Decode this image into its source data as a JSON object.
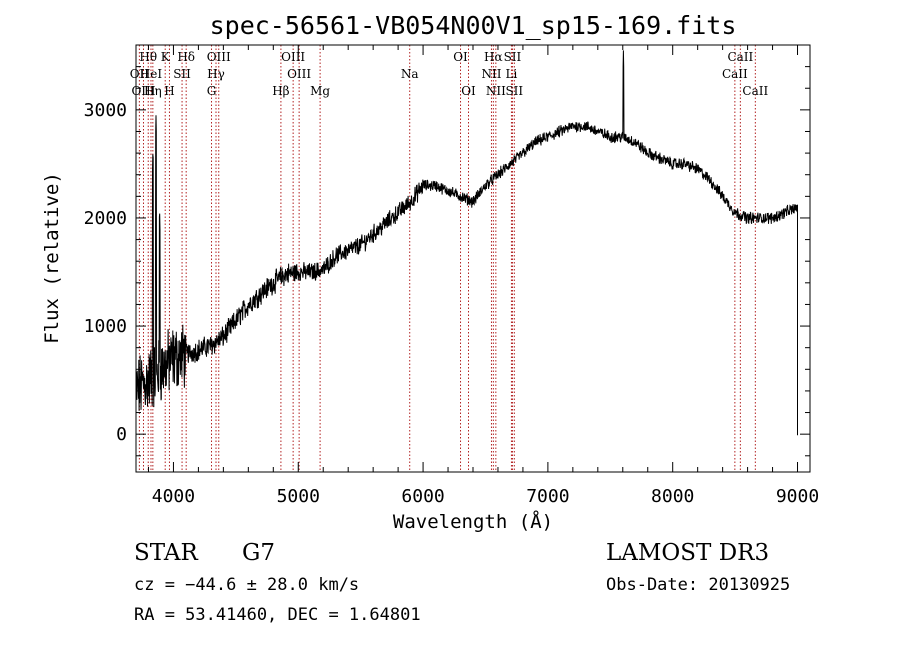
{
  "chart_data": {
    "type": "line",
    "title": "spec-56561-VB054N00V1_sp15-169.fits",
    "xlabel": "Wavelength (Å)",
    "ylabel": "Flux (relative)",
    "xlim": [
      3700,
      9100
    ],
    "ylim": [
      -350,
      3600
    ],
    "xticks": [
      4000,
      5000,
      6000,
      7000,
      8000,
      9000
    ],
    "yticks": [
      0,
      1000,
      2000,
      3000
    ],
    "continuum": {
      "x": [
        3700,
        3800,
        3900,
        4000,
        4100,
        4200,
        4300,
        4400,
        4500,
        4600,
        4700,
        4800,
        4900,
        5000,
        5100,
        5200,
        5300,
        5400,
        5500,
        5600,
        5700,
        5800,
        5900,
        6000,
        6100,
        6200,
        6300,
        6400,
        6500,
        6600,
        6700,
        6800,
        6900,
        7000,
        7100,
        7200,
        7300,
        7400,
        7500,
        7600,
        7700,
        7800,
        7900,
        8000,
        8100,
        8200,
        8300,
        8400,
        8500,
        8600,
        8700,
        8800,
        8900,
        9000
      ],
      "y": [
        400,
        500,
        600,
        700,
        740,
        780,
        820,
        900,
        1050,
        1200,
        1300,
        1400,
        1480,
        1500,
        1500,
        1520,
        1650,
        1700,
        1750,
        1850,
        1950,
        2050,
        2150,
        2300,
        2300,
        2250,
        2200,
        2150,
        2300,
        2400,
        2500,
        2600,
        2700,
        2750,
        2800,
        2850,
        2850,
        2800,
        2750,
        2750,
        2700,
        2600,
        2550,
        2500,
        2500,
        2450,
        2350,
        2200,
        2050,
        2000,
        2000,
        2000,
        2050,
        2100
      ]
    },
    "features": [
      {
        "x": 3836,
        "y": 2650
      },
      {
        "x": 3860,
        "y": 2950
      },
      {
        "x": 3889,
        "y": 2100
      },
      {
        "x": 7605,
        "y": 3550
      }
    ],
    "lines": [
      {
        "name": "Hθ",
        "wavelength": 3798,
        "row": 1
      },
      {
        "name": "OII",
        "wavelength": 3727,
        "row": 2
      },
      {
        "name": "OIII",
        "wavelength": 3760,
        "row": 3
      },
      {
        "name": "HeI",
        "wavelength": 3820,
        "row": 2
      },
      {
        "name": "Hη",
        "wavelength": 3835,
        "row": 3
      },
      {
        "name": "K",
        "wavelength": 3934,
        "row": 1
      },
      {
        "name": "H",
        "wavelength": 3968,
        "row": 3
      },
      {
        "name": "SII",
        "wavelength": 4069,
        "row": 2
      },
      {
        "name": "Hδ",
        "wavelength": 4102,
        "row": 1
      },
      {
        "name": "OIII",
        "wavelength": 4363,
        "row": 1
      },
      {
        "name": "Hγ",
        "wavelength": 4341,
        "row": 2
      },
      {
        "name": "G",
        "wavelength": 4305,
        "row": 3
      },
      {
        "name": "OIII",
        "wavelength": 4959,
        "row": 1
      },
      {
        "name": "OIII",
        "wavelength": 5007,
        "row": 2
      },
      {
        "name": "Hβ",
        "wavelength": 4861,
        "row": 3
      },
      {
        "name": "Mg",
        "wavelength": 5175,
        "row": 3
      },
      {
        "name": "Na",
        "wavelength": 5893,
        "row": 2
      },
      {
        "name": "OI",
        "wavelength": 6300,
        "row": 1
      },
      {
        "name": "OI",
        "wavelength": 6364,
        "row": 3
      },
      {
        "name": "Hα",
        "wavelength": 6563,
        "row": 1
      },
      {
        "name": "SII",
        "wavelength": 6716,
        "row": 1
      },
      {
        "name": "NII",
        "wavelength": 6548,
        "row": 2
      },
      {
        "name": "Li",
        "wavelength": 6708,
        "row": 2
      },
      {
        "name": "NII",
        "wavelength": 6583,
        "row": 3
      },
      {
        "name": "SII",
        "wavelength": 6731,
        "row": 3
      },
      {
        "name": "CaII",
        "wavelength": 8542,
        "row": 1
      },
      {
        "name": "CaII",
        "wavelength": 8498,
        "row": 2
      },
      {
        "name": "CaII",
        "wavelength": 8662,
        "row": 3
      }
    ]
  },
  "info": {
    "object_type": "STAR",
    "subclass": "G7",
    "survey": "LAMOST DR3",
    "cz_line": "cz = −44.6 ± 28.0 km/s",
    "obs_date": "Obs-Date: 20130925",
    "coords": "RA =  53.41460, DEC =   1.64801"
  },
  "colors": {
    "spectrum": "#000000",
    "line_markers": "#b22222",
    "axes": "#000000"
  }
}
